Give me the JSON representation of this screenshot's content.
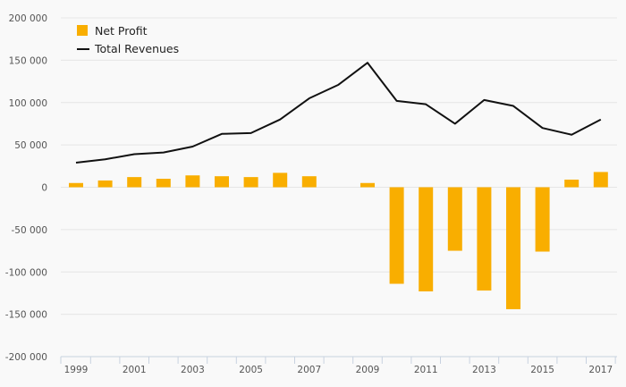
{
  "chart_data": {
    "type": "bar",
    "categories": [
      "1999",
      "2000",
      "2001",
      "2002",
      "2003",
      "2004",
      "2005",
      "2006",
      "2007",
      "2008",
      "2009",
      "2010",
      "2011",
      "2012",
      "2013",
      "2014",
      "2015",
      "2016",
      "2017"
    ],
    "x_tick_labels": [
      "1999",
      "2001",
      "2003",
      "2005",
      "2007",
      "2009",
      "2011",
      "2013",
      "2015",
      "2017"
    ],
    "y_tick_labels": [
      "200 000",
      "150 000",
      "100 000",
      "50 000",
      "0",
      "-50 000",
      "-100 000",
      "-150 000",
      "-200 000"
    ],
    "ylim": [
      -200000,
      200000
    ],
    "grid": true,
    "legend_position": "top-left",
    "series": [
      {
        "name": "Net Profit",
        "type": "bar",
        "color": "#f9ae00",
        "values": [
          5000,
          8000,
          12000,
          10000,
          14000,
          13000,
          12000,
          17000,
          13000,
          null,
          5000,
          -114000,
          -123000,
          -75000,
          -122000,
          -144000,
          -76000,
          9000,
          18000
        ]
      },
      {
        "name": "Total Revenues",
        "type": "line",
        "color": "#111111",
        "values": [
          29000,
          33000,
          39000,
          41000,
          48000,
          63000,
          64000,
          80000,
          105000,
          121000,
          147000,
          102000,
          98000,
          75000,
          103000,
          96000,
          70000,
          62000,
          80000
        ]
      }
    ]
  },
  "colors": {
    "background": "#f9f9f9",
    "grid": "#e6e6e6",
    "axis": "#c8d2e0"
  }
}
